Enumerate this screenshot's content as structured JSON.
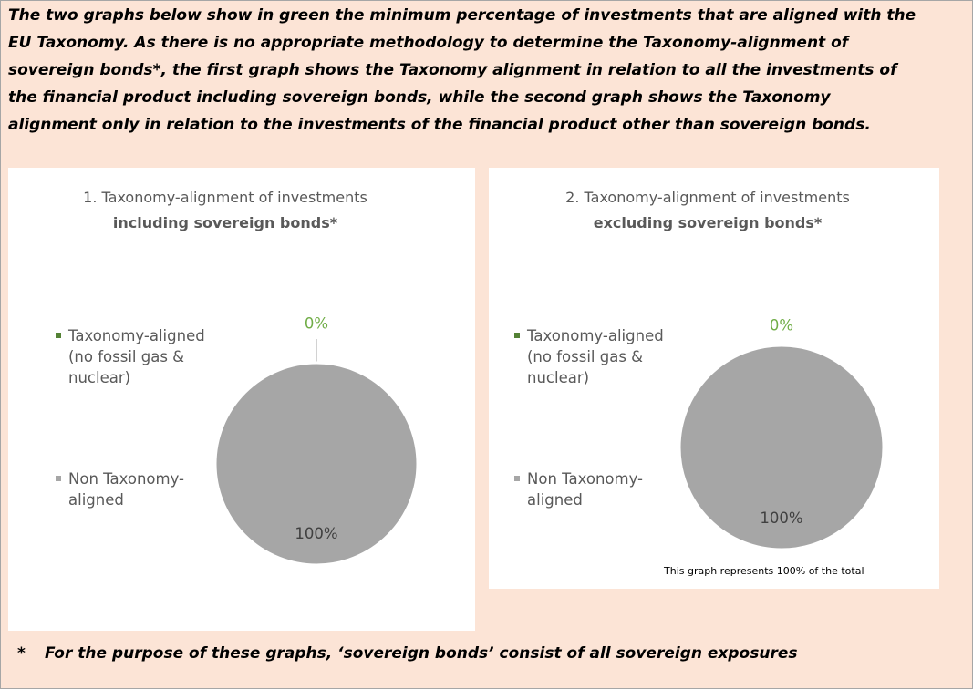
{
  "intro": [
    "The two graphs below show in green the minimum percentage of investments that are aligned with the",
    "EU Taxonomy. As there is no appropriate methodology to determine the Taxonomy-alignment of",
    "sovereign bonds*, the first graph shows the Taxonomy alignment in relation to all the investments of",
    "the financial product including sovereign bonds, while the second graph shows the Taxonomy",
    "alignment only in relation to the investments of the financial product other than sovereign bonds."
  ],
  "chart_data": [
    {
      "type": "pie",
      "title": "1. Taxonomy-alignment of investments",
      "subtitle": "including sovereign bonds*",
      "categories": [
        "Taxonomy-aligned (no fossil gas & nuclear)",
        "Non Taxonomy-aligned"
      ],
      "values": [
        0,
        100
      ],
      "value_labels": [
        "0%",
        "100%"
      ],
      "colors": [
        "#548235",
        "#a6a6a6"
      ]
    },
    {
      "type": "pie",
      "title": "2. Taxonomy-alignment of investments",
      "subtitle": "excluding sovereign bonds*",
      "categories": [
        "Taxonomy-aligned (no fossil gas & nuclear)",
        "Non Taxonomy-aligned"
      ],
      "values": [
        0,
        100
      ],
      "value_labels": [
        "0%",
        "100%"
      ],
      "colors": [
        "#548235",
        "#a6a6a6"
      ],
      "annotation": "This graph represents 100% of the total"
    }
  ],
  "footnote_mark": "*",
  "footnote": "For the purpose of these graphs, ‘sovereign bonds’ consist of all sovereign exposures"
}
